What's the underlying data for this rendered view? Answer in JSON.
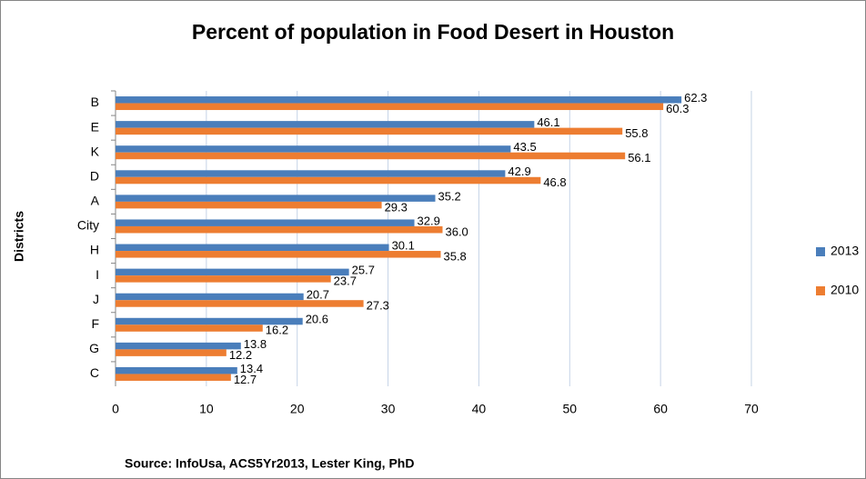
{
  "chart_data": {
    "type": "hbar",
    "title": "Percent of population in Food Desert in Houston",
    "y_label": "Districts",
    "source": "Source: InfoUsa, ACS5Yr2013, Lester King, PhD",
    "categories": [
      "B",
      "E",
      "K",
      "D",
      "A",
      "City",
      "H",
      "I",
      "J",
      "F",
      "G",
      "C"
    ],
    "series": [
      {
        "name": "2013",
        "color": "#4a7ebb",
        "values": [
          62.3,
          46.1,
          43.5,
          42.9,
          35.2,
          32.9,
          30.1,
          25.7,
          20.7,
          20.6,
          13.8,
          13.4
        ]
      },
      {
        "name": "2010",
        "color": "#ed7d31",
        "values": [
          60.3,
          55.8,
          56.1,
          46.8,
          29.3,
          36.0,
          35.8,
          23.7,
          27.3,
          16.2,
          12.2,
          12.7
        ],
        "value_labels": [
          "60.3",
          "55.8",
          "56.1",
          "46.8",
          "29.3",
          "36.0",
          "35.8",
          "23.7",
          "27.3",
          "16.2",
          "12.2",
          "12.7"
        ]
      }
    ],
    "xlim": [
      0,
      70
    ],
    "xticks": [
      0,
      10,
      20,
      30,
      40,
      50,
      60,
      70
    ],
    "grid": true,
    "legend": "right"
  }
}
